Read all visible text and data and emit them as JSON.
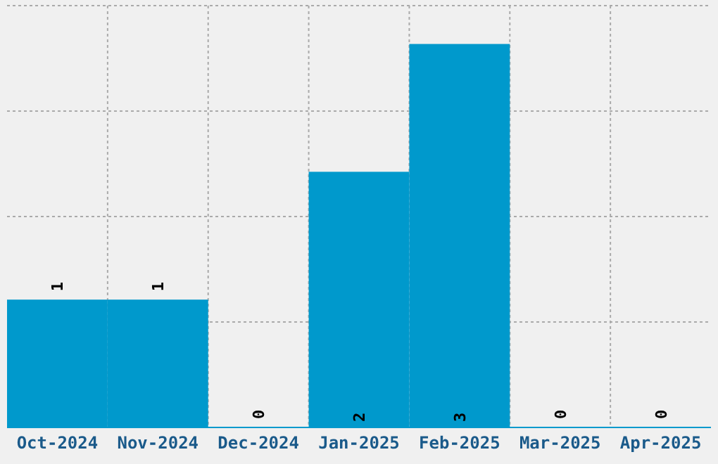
{
  "chart_data": {
    "type": "bar",
    "categories": [
      "Oct-2024",
      "Nov-2024",
      "Dec-2024",
      "Jan-2025",
      "Feb-2025",
      "Mar-2025",
      "Apr-2025"
    ],
    "values": [
      1,
      1,
      0,
      2,
      3,
      0,
      0
    ],
    "color": "#0099cc",
    "data_labels": true,
    "grid": true,
    "tick_labels": "x",
    "ylim": [
      0,
      3.3
    ],
    "yticks": [
      {
        "value": 0,
        "label": null
      },
      {
        "value": 0.825,
        "label": null
      },
      {
        "value": 1.65,
        "label": null
      },
      {
        "value": 2.475,
        "label": null
      },
      {
        "value": 3.3,
        "label": null
      }
    ]
  }
}
